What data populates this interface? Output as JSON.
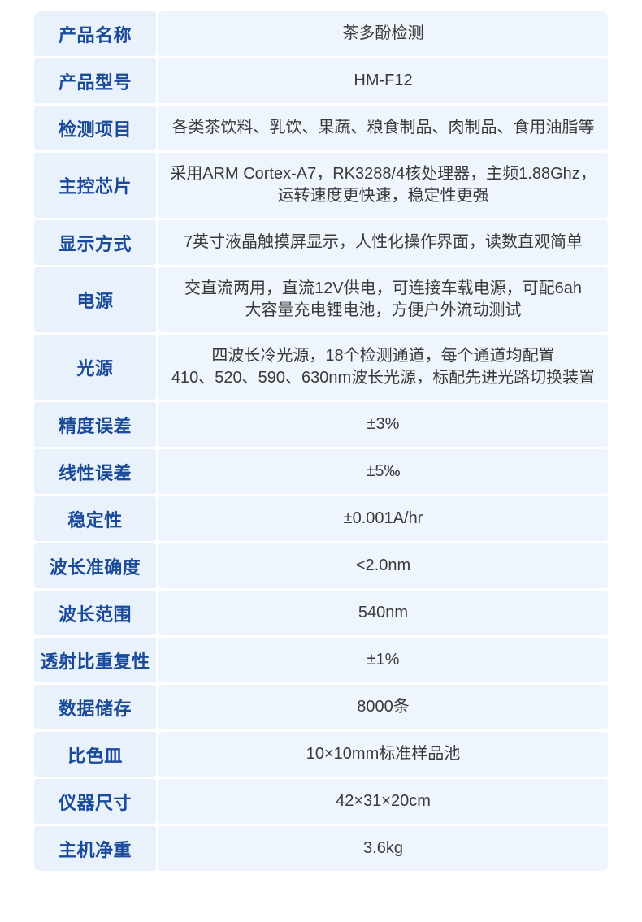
{
  "product": {
    "name": "茶多酚检测",
    "model": "HM-F12"
  },
  "colors": {
    "label_text": "#1a4a9a",
    "label_bg": "#e9f1fa",
    "value_text": "#3a3a3a",
    "value_bg": "#eff5fc",
    "page_bg": "#ffffff"
  },
  "table": {
    "rows": [
      {
        "label": "产品名称",
        "value": "茶多酚检测"
      },
      {
        "label": "产品型号",
        "value": "HM-F12"
      },
      {
        "label": "检测项目",
        "value": "各类茶饮料、乳饮、果蔬、粮食制品、肉制品、食用油脂等"
      },
      {
        "label": "主控芯片",
        "value": "采用ARM Cortex-A7，RK3288/4核处理器，主频1.88Ghz，\n运转速度更快速，稳定性更强"
      },
      {
        "label": "显示方式",
        "value": "7英寸液晶触摸屏显示，人性化操作界面，读数直观简单"
      },
      {
        "label": "电源",
        "value": "交直流两用，直流12V供电，可连接车载电源，可配6ah\n大容量充电锂电池，方便户外流动测试"
      },
      {
        "label": "光源",
        "value": "四波长冷光源，18个检测通道，每个通道均配置\n410、520、590、630nm波长光源，标配先进光路切换装置"
      },
      {
        "label": "精度误差",
        "value": "±3%"
      },
      {
        "label": "线性误差",
        "value": "±5‰"
      },
      {
        "label": "稳定性",
        "value": "±0.001A/hr"
      },
      {
        "label": "波长准确度",
        "value": "<2.0nm"
      },
      {
        "label": "波长范围",
        "value": "540nm"
      },
      {
        "label": "透射比重复性",
        "value": "±1%"
      },
      {
        "label": "数据储存",
        "value": "8000条"
      },
      {
        "label": "比色皿",
        "value": "10×10mm标准样品池"
      },
      {
        "label": "仪器尺寸",
        "value": "42×31×20cm"
      },
      {
        "label": "主机净重",
        "value": "3.6kg"
      }
    ]
  }
}
